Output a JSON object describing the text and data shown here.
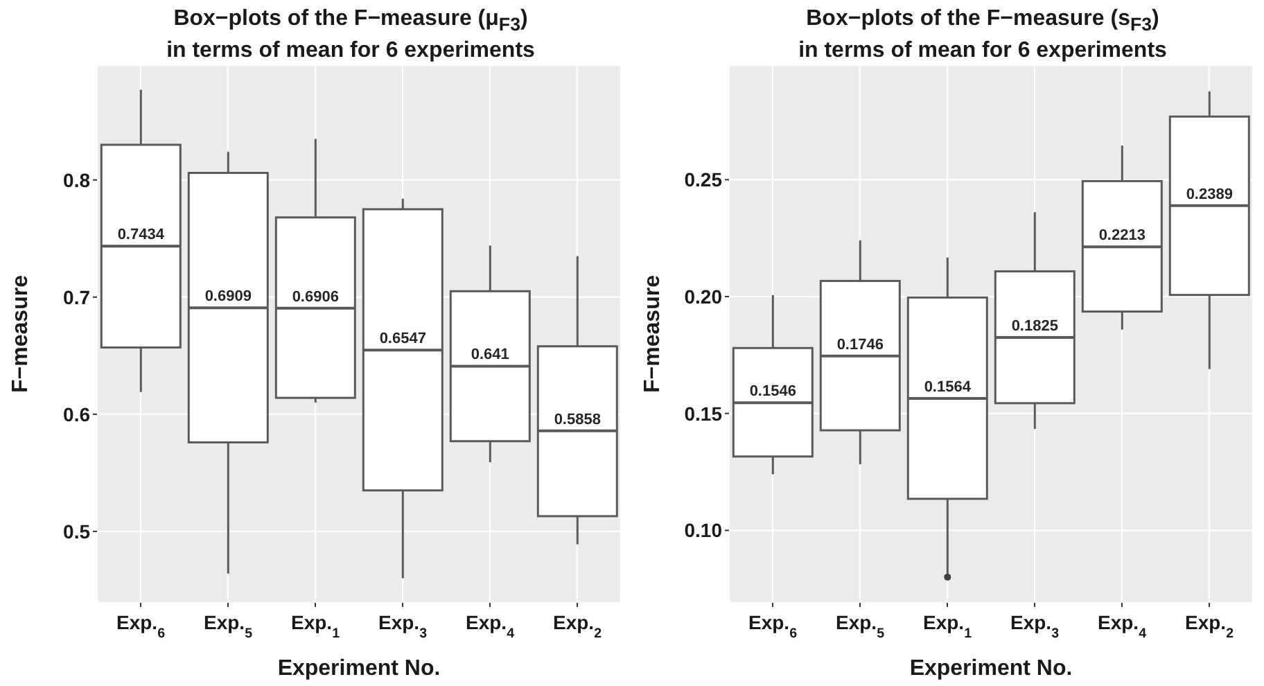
{
  "chart_data": [
    {
      "type": "box",
      "title": "Box−plots of the F−measure (μ$_{F3}$)\nin terms of mean for 6 experiments",
      "xlabel": "Experiment No.",
      "ylabel": "F−measure",
      "categories": [
        "Exp.$_{6}$",
        "Exp.$_{5}$",
        "Exp.$_{1}$",
        "Exp.$_{3}$",
        "Exp.$_{4}$",
        "Exp.$_{2}$"
      ],
      "boxes": [
        {
          "low": 0.619,
          "q1": 0.657,
          "median": 0.7434,
          "q3": 0.83,
          "high": 0.877
        },
        {
          "low": 0.464,
          "q1": 0.576,
          "median": 0.6909,
          "q3": 0.806,
          "high": 0.824
        },
        {
          "low": 0.61,
          "q1": 0.614,
          "median": 0.6906,
          "q3": 0.768,
          "high": 0.835
        },
        {
          "low": 0.46,
          "q1": 0.535,
          "median": 0.6547,
          "q3": 0.775,
          "high": 0.784
        },
        {
          "low": 0.559,
          "q1": 0.577,
          "median": 0.641,
          "q3": 0.705,
          "high": 0.744
        },
        {
          "low": 0.489,
          "q1": 0.513,
          "median": 0.5858,
          "q3": 0.658,
          "high": 0.735
        }
      ],
      "ylim": [
        0.439,
        0.898
      ],
      "yticks": [
        0.5,
        0.6,
        0.7,
        0.8
      ],
      "grid": true,
      "value_labels": [
        "0.7434",
        "0.6909",
        "0.6906",
        "0.6547",
        "0.641",
        "0.5858"
      ]
    },
    {
      "type": "box",
      "title": "Box−plots of the F−measure (s$_{F3}$)\nin terms of mean for 6 experiments",
      "xlabel": "Experiment No.",
      "ylabel": "F−measure",
      "categories": [
        "Exp.$_{6}$",
        "Exp.$_{5}$",
        "Exp.$_{1}$",
        "Exp.$_{3}$",
        "Exp.$_{4}$",
        "Exp.$_{2}$"
      ],
      "boxes": [
        {
          "low": 0.124,
          "q1": 0.1316,
          "median": 0.1546,
          "q3": 0.178,
          "high": 0.2006
        },
        {
          "low": 0.1283,
          "q1": 0.1428,
          "median": 0.1746,
          "q3": 0.2067,
          "high": 0.224
        },
        {
          "low": 0.081,
          "q1": 0.1135,
          "median": 0.1564,
          "q3": 0.1996,
          "high": 0.2167,
          "outliers": [
            0.08
          ]
        },
        {
          "low": 0.1434,
          "q1": 0.1544,
          "median": 0.1825,
          "q3": 0.2108,
          "high": 0.2361
        },
        {
          "low": 0.1859,
          "q1": 0.1936,
          "median": 0.2213,
          "q3": 0.2494,
          "high": 0.2646
        },
        {
          "low": 0.169,
          "q1": 0.2007,
          "median": 0.2389,
          "q3": 0.277,
          "high": 0.2878
        }
      ],
      "ylim": [
        0.069,
        0.299
      ],
      "yticks": [
        {
          "value": 0.1,
          "label": "0.10"
        },
        {
          "value": 0.15,
          "label": "0.15"
        },
        {
          "value": 0.2,
          "label": "0.20"
        },
        {
          "value": 0.25,
          "label": "0.25"
        }
      ],
      "grid": true,
      "value_labels": [
        "0.1546",
        "0.1746",
        "0.1564",
        "0.1825",
        "0.2213",
        "0.2389"
      ]
    }
  ]
}
